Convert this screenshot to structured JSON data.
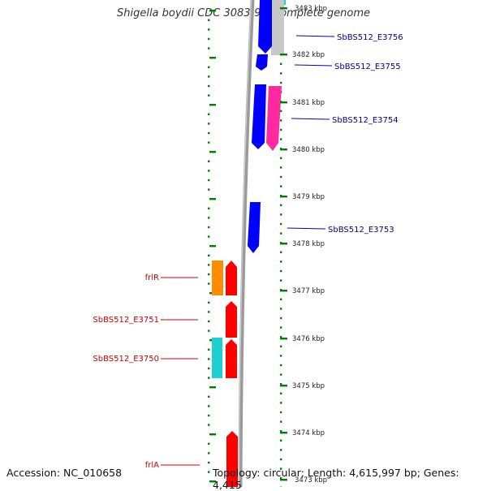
{
  "title": "Shigella boydii CDC 3083-94, complete genome",
  "footer": {
    "accession": "Accession: NC_010658",
    "topology": "Topology: circular; Length: 4,615,997 bp; Genes: 4,415"
  },
  "colors": {
    "forward_blue": "#0000ff",
    "reverse_red": "#ff0000",
    "magenta": "#ff2aa0",
    "orange": "#ff8c00",
    "cyan": "#1fd0d0",
    "grey": "#c8c8c8",
    "backbone": "#8a8a8a",
    "tick_green": "#008000"
  },
  "scale_ticks": [
    {
      "label": "3483 kbp"
    },
    {
      "label": "3482 kbp"
    },
    {
      "label": "3481 kbp"
    },
    {
      "label": "3480 kbp"
    },
    {
      "label": "3479 kbp"
    },
    {
      "label": "3478 kbp"
    },
    {
      "label": "3477 kbp"
    },
    {
      "label": "3476 kbp"
    },
    {
      "label": "3475 kbp"
    },
    {
      "label": "3474 kbp"
    },
    {
      "label": "3473 kbp"
    }
  ],
  "gene_labels": {
    "right": [
      "SbBS512_E3756",
      "SbBS512_E3755",
      "SbBS512_E3754",
      "SbBS512_E3753"
    ],
    "left": [
      "frlR",
      "SbBS512_E3751",
      "SbBS512_E3750",
      "frlA"
    ]
  }
}
